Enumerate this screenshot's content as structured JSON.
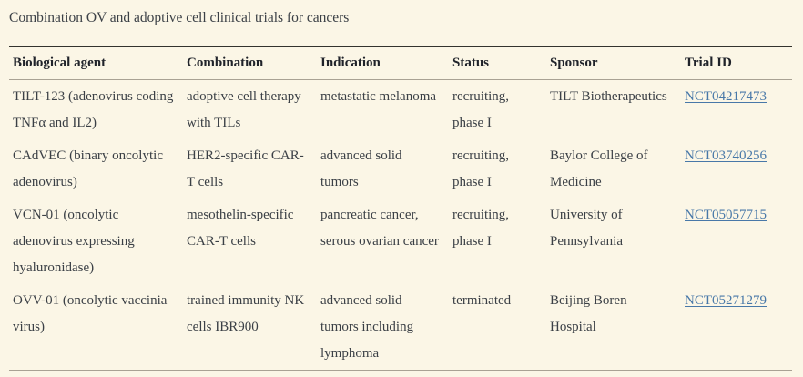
{
  "theme": {
    "background_color": "#fbf6e6",
    "body_text_color": "#3b4046",
    "header_text_color": "#20232a",
    "link_color": "#4878a8",
    "heavy_rule_color": "#33332e",
    "light_rule_color": "#a9a294"
  },
  "caption": "Combination OV and adoptive cell clinical trials for cancers",
  "table": {
    "columns": [
      "Biological agent",
      "Combination",
      "Indication",
      "Status",
      "Sponsor",
      "Trial ID"
    ],
    "rows": [
      {
        "biological_agent": "TILT-123 (adenovirus coding TNFα and IL2)",
        "combination": "adoptive cell therapy with TILs",
        "indication": "metastatic melanoma",
        "status": "recruiting, phase I",
        "sponsor": "TILT Biotherapeutics",
        "trial_id": "NCT04217473"
      },
      {
        "biological_agent": "CAdVEC (binary oncolytic adenovirus)",
        "combination": "HER2-specific CAR-T cells",
        "indication": "advanced solid tumors",
        "status": "recruiting, phase I",
        "sponsor": "Baylor College of Medicine",
        "trial_id": "NCT03740256"
      },
      {
        "biological_agent": "VCN-01 (oncolytic adenovirus expressing hyaluronidase)",
        "combination": "mesothelin-specific CAR-T cells",
        "indication": "pancreatic cancer, serous ovarian cancer",
        "status": "recruiting, phase I",
        "sponsor": "University of Pennsylvania",
        "trial_id": "NCT05057715"
      },
      {
        "biological_agent": "OVV-01 (oncolytic vaccinia virus)",
        "combination": "trained immunity NK cells IBR900",
        "indication": "advanced solid tumors including lymphoma",
        "status": "terminated",
        "sponsor": "Beijing Boren Hospital",
        "trial_id": "NCT05271279"
      }
    ]
  }
}
